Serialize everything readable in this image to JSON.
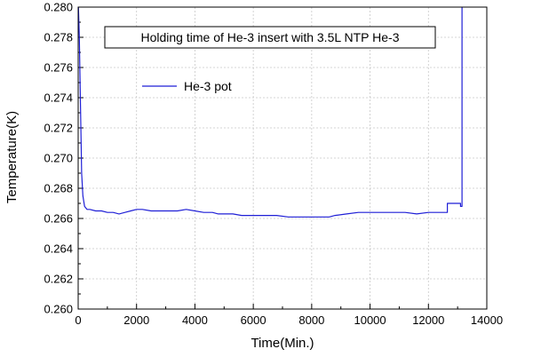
{
  "chart_data": {
    "type": "line",
    "title": "Holding time of He-3 insert with 3.5L NTP He-3",
    "xlabel": "Time(Min.)",
    "ylabel": "Temperature(K)",
    "xlim": [
      0,
      14000
    ],
    "ylim": [
      0.26,
      0.28
    ],
    "x_ticks": [
      0,
      2000,
      4000,
      6000,
      8000,
      10000,
      12000,
      14000
    ],
    "y_ticks": [
      0.26,
      0.262,
      0.264,
      0.266,
      0.268,
      0.27,
      0.272,
      0.274,
      0.276,
      0.278,
      0.28
    ],
    "grid": true,
    "legend_position": "top-left",
    "series": [
      {
        "name": "He-3 pot",
        "color": "#1f1fd6",
        "x": [
          0,
          40,
          80,
          120,
          160,
          220,
          300,
          400,
          600,
          800,
          1000,
          1200,
          1400,
          1600,
          1800,
          2000,
          2200,
          2500,
          2800,
          3100,
          3400,
          3700,
          4000,
          4300,
          4600,
          4800,
          5000,
          5300,
          5600,
          6000,
          6400,
          6800,
          7200,
          7600,
          8000,
          8400,
          8600,
          8800,
          9200,
          9600,
          10000,
          10400,
          10800,
          11200,
          11600,
          12000,
          12400,
          12650,
          12650,
          13100,
          13100,
          13150,
          13150,
          13200
        ],
        "y": [
          0.2805,
          0.278,
          0.2735,
          0.269,
          0.2675,
          0.2668,
          0.2666,
          0.2666,
          0.2665,
          0.2665,
          0.2664,
          0.2664,
          0.2663,
          0.2664,
          0.2665,
          0.2666,
          0.2666,
          0.2665,
          0.2665,
          0.2665,
          0.2665,
          0.2666,
          0.2665,
          0.2664,
          0.2664,
          0.2663,
          0.2663,
          0.2663,
          0.2662,
          0.2662,
          0.2662,
          0.2662,
          0.2661,
          0.2661,
          0.2661,
          0.2661,
          0.2661,
          0.2662,
          0.2663,
          0.2664,
          0.2664,
          0.2664,
          0.2664,
          0.2664,
          0.2663,
          0.2664,
          0.2664,
          0.2664,
          0.267,
          0.267,
          0.2668,
          0.2668,
          0.281,
          0.2812
        ]
      }
    ]
  }
}
